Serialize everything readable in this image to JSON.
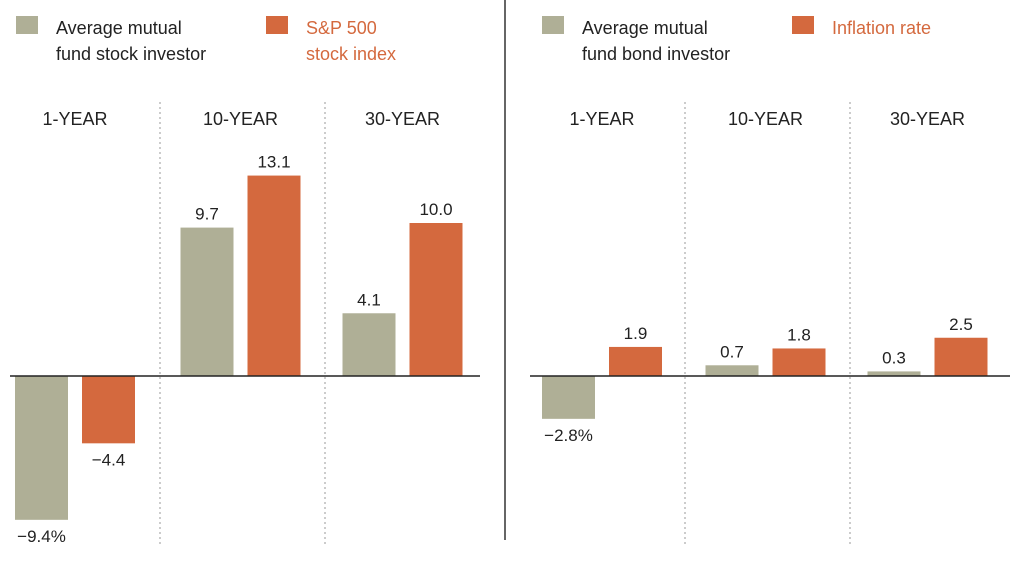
{
  "chart_data": [
    {
      "type": "bar",
      "groups": [
        "1-YEAR",
        "10-YEAR",
        "30-YEAR"
      ],
      "series": [
        {
          "name": "Average mutual fund stock investor",
          "legend_lines": [
            "Average mutual",
            "fund stock investor"
          ],
          "color": "#afaf96",
          "values": [
            -9.4,
            9.7,
            4.1
          ],
          "value_labels": [
            "−9.4%",
            "9.7",
            "4.1"
          ]
        },
        {
          "name": "S&P 500 stock index",
          "legend_lines": [
            "S&P 500",
            "stock index"
          ],
          "color": "#d4693e",
          "values": [
            -4.4,
            13.1,
            10.0
          ],
          "value_labels": [
            "−4.4",
            "13.1",
            "10.0"
          ]
        }
      ]
    },
    {
      "type": "bar",
      "groups": [
        "1-YEAR",
        "10-YEAR",
        "30-YEAR"
      ],
      "series": [
        {
          "name": "Average mutual fund bond investor",
          "legend_lines": [
            "Average mutual",
            "fund bond investor"
          ],
          "color": "#afaf96",
          "values": [
            -2.8,
            0.7,
            0.3
          ],
          "value_labels": [
            "−2.8%",
            "0.7",
            "0.3"
          ]
        },
        {
          "name": "Inflation rate",
          "legend_lines": [
            "Inflation rate"
          ],
          "color": "#d4693e",
          "values": [
            1.9,
            1.8,
            2.5
          ],
          "value_labels": [
            "1.9",
            "1.8",
            "2.5"
          ]
        }
      ]
    }
  ]
}
